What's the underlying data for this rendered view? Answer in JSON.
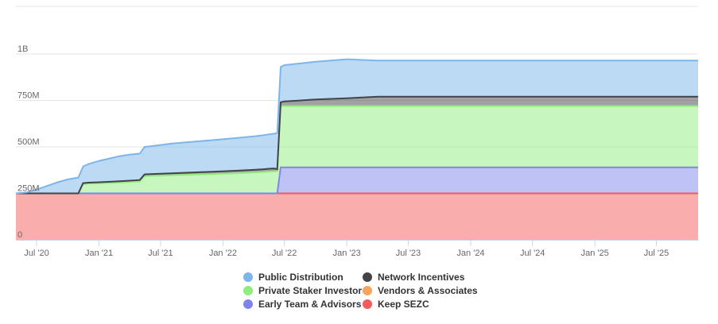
{
  "chart_data": {
    "type": "area",
    "stacked": true,
    "x_start": "2020-05-01",
    "x_end": "2025-11-01",
    "ylim": [
      0,
      1000000000
    ],
    "y_ticks": [
      {
        "value": 0,
        "label": "0"
      },
      {
        "value": 250000000,
        "label": "250M"
      },
      {
        "value": 500000000,
        "label": "500M"
      },
      {
        "value": 750000000,
        "label": "750M"
      },
      {
        "value": 1000000000,
        "label": "1B"
      }
    ],
    "x_ticks": [
      {
        "date": "2020-07-01",
        "label": "Jul '20"
      },
      {
        "date": "2021-01-01",
        "label": "Jan '21"
      },
      {
        "date": "2021-07-01",
        "label": "Jul '21"
      },
      {
        "date": "2022-01-01",
        "label": "Jan '22"
      },
      {
        "date": "2022-07-01",
        "label": "Jul '22"
      },
      {
        "date": "2023-01-01",
        "label": "Jan '23"
      },
      {
        "date": "2023-07-01",
        "label": "Jul '23"
      },
      {
        "date": "2024-01-01",
        "label": "Jan '24"
      },
      {
        "date": "2024-07-01",
        "label": "Jul '24"
      },
      {
        "date": "2025-01-01",
        "label": "Jan '25"
      },
      {
        "date": "2025-07-01",
        "label": "Jul '25"
      }
    ],
    "grid": true,
    "legend_position": "bottom",
    "dates": [
      "2020-05-01",
      "2020-06-01",
      "2020-07-01",
      "2020-08-01",
      "2020-09-01",
      "2020-10-01",
      "2020-11-01",
      "2020-11-15",
      "2020-12-01",
      "2021-01-01",
      "2021-02-01",
      "2021-03-01",
      "2021-04-01",
      "2021-05-01",
      "2021-05-15",
      "2021-06-01",
      "2021-08-01",
      "2021-10-01",
      "2021-12-01",
      "2022-02-01",
      "2022-04-01",
      "2022-05-01",
      "2022-05-15",
      "2022-06-01",
      "2022-06-10",
      "2022-06-20",
      "2022-07-01",
      "2022-10-01",
      "2023-01-01",
      "2023-04-01",
      "2023-07-01",
      "2024-01-01",
      "2024-07-01",
      "2025-01-01",
      "2025-07-01",
      "2025-11-01"
    ],
    "series": [
      {
        "name": "Keep SEZC",
        "color": "#f45b5b",
        "values": [
          250000000,
          250000000,
          250000000,
          250000000,
          250000000,
          250000000,
          250000000,
          250000000,
          250000000,
          250000000,
          250000000,
          250000000,
          250000000,
          250000000,
          250000000,
          250000000,
          250000000,
          250000000,
          250000000,
          250000000,
          250000000,
          250000000,
          250000000,
          250000000,
          250000000,
          250000000,
          250000000,
          250000000,
          250000000,
          250000000,
          250000000,
          250000000,
          250000000,
          250000000,
          250000000,
          250000000
        ]
      },
      {
        "name": "Early Team & Advisors",
        "color": "#8085e9",
        "values": [
          0,
          0,
          0,
          0,
          0,
          0,
          0,
          0,
          0,
          0,
          0,
          0,
          0,
          0,
          0,
          0,
          0,
          0,
          0,
          0,
          0,
          0,
          0,
          0,
          0,
          140000000,
          140000000,
          140000000,
          140000000,
          140000000,
          140000000,
          140000000,
          140000000,
          140000000,
          140000000,
          140000000
        ]
      },
      {
        "name": "Vendors & Associates",
        "color": "#f7a35c",
        "values": [
          0,
          0,
          0,
          0,
          0,
          0,
          0,
          0,
          0,
          0,
          0,
          0,
          0,
          0,
          0,
          0,
          0,
          0,
          0,
          0,
          0,
          0,
          0,
          0,
          0,
          0,
          0,
          0,
          0,
          0,
          0,
          0,
          0,
          0,
          0,
          0
        ]
      },
      {
        "name": "Private Staker Investors",
        "color": "#90ed7d",
        "values": [
          0,
          0,
          0,
          0,
          0,
          0,
          0,
          50000000,
          52000000,
          54000000,
          56000000,
          58000000,
          61000000,
          64000000,
          93000000,
          94000000,
          97000000,
          101000000,
          104000000,
          108000000,
          112000000,
          115000000,
          117000000,
          118000000,
          120000000,
          330000000,
          330000000,
          330000000,
          330000000,
          330000000,
          330000000,
          330000000,
          330000000,
          330000000,
          330000000,
          330000000
        ]
      },
      {
        "name": "Network Incentives",
        "color": "#434348",
        "values": [
          0,
          0,
          0,
          0,
          0,
          0,
          0,
          5000000,
          5500000,
          6000000,
          6500000,
          7000000,
          7500000,
          8000000,
          9000000,
          9500000,
          10500000,
          11500000,
          12500000,
          13500000,
          14500000,
          15000000,
          15500000,
          16000000,
          10000000,
          20000000,
          25000000,
          35000000,
          42000000,
          50000000,
          50000000,
          50000000,
          50000000,
          50000000,
          50000000,
          50000000
        ]
      },
      {
        "name": "Public Distribution",
        "color": "#7cb5ec",
        "values": [
          0,
          5000000,
          20000000,
          40000000,
          60000000,
          75000000,
          85000000,
          90000000,
          100000000,
          115000000,
          125000000,
          135000000,
          140000000,
          142000000,
          148000000,
          150000000,
          160000000,
          165000000,
          170000000,
          175000000,
          180000000,
          183000000,
          185000000,
          187000000,
          195000000,
          190000000,
          195000000,
          203000000,
          210000000,
          195000000,
          195000000,
          195000000,
          195000000,
          195000000,
          195000000,
          195000000
        ]
      }
    ]
  },
  "legend": {
    "items": [
      {
        "label": "Public Distribution",
        "color": "#7cb5ec"
      },
      {
        "label": "Network Incentives",
        "color": "#434348"
      },
      {
        "label": "Private Staker Investors",
        "color": "#90ed7d"
      },
      {
        "label": "Vendors & Associates",
        "color": "#f7a35c"
      },
      {
        "label": "Early Team & Advisors",
        "color": "#8085e9"
      },
      {
        "label": "Keep SEZC",
        "color": "#f45b5b"
      }
    ]
  }
}
